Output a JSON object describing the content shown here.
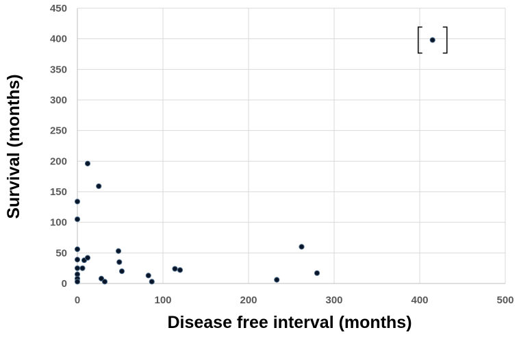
{
  "chart_data": {
    "type": "scatter",
    "xlabel": "Disease free interval (months)",
    "ylabel": "Survival (months)",
    "xlim": [
      0,
      500
    ],
    "ylim": [
      0,
      450
    ],
    "xticks": [
      0,
      100,
      200,
      300,
      400,
      500
    ],
    "yticks": [
      0,
      50,
      100,
      150,
      200,
      250,
      300,
      350,
      400,
      450
    ],
    "grid": true,
    "legend": "none",
    "marker_color": "#0a1628",
    "annotation": "bracket around outlier point (415, 398)",
    "points": [
      {
        "x": 0,
        "y": 134
      },
      {
        "x": 0,
        "y": 105
      },
      {
        "x": 0,
        "y": 56
      },
      {
        "x": 0,
        "y": 39
      },
      {
        "x": 0,
        "y": 25
      },
      {
        "x": 0,
        "y": 15
      },
      {
        "x": 0,
        "y": 8
      },
      {
        "x": 0,
        "y": 3
      },
      {
        "x": 6,
        "y": 25
      },
      {
        "x": 8,
        "y": 38
      },
      {
        "x": 12,
        "y": 42
      },
      {
        "x": 12,
        "y": 196
      },
      {
        "x": 25,
        "y": 159
      },
      {
        "x": 28,
        "y": 8
      },
      {
        "x": 32,
        "y": 3
      },
      {
        "x": 48,
        "y": 53
      },
      {
        "x": 49,
        "y": 35
      },
      {
        "x": 52,
        "y": 20
      },
      {
        "x": 83,
        "y": 13
      },
      {
        "x": 87,
        "y": 3
      },
      {
        "x": 114,
        "y": 24
      },
      {
        "x": 120,
        "y": 22
      },
      {
        "x": 233,
        "y": 6
      },
      {
        "x": 262,
        "y": 60
      },
      {
        "x": 280,
        "y": 17
      },
      {
        "x": 415,
        "y": 398
      }
    ]
  }
}
